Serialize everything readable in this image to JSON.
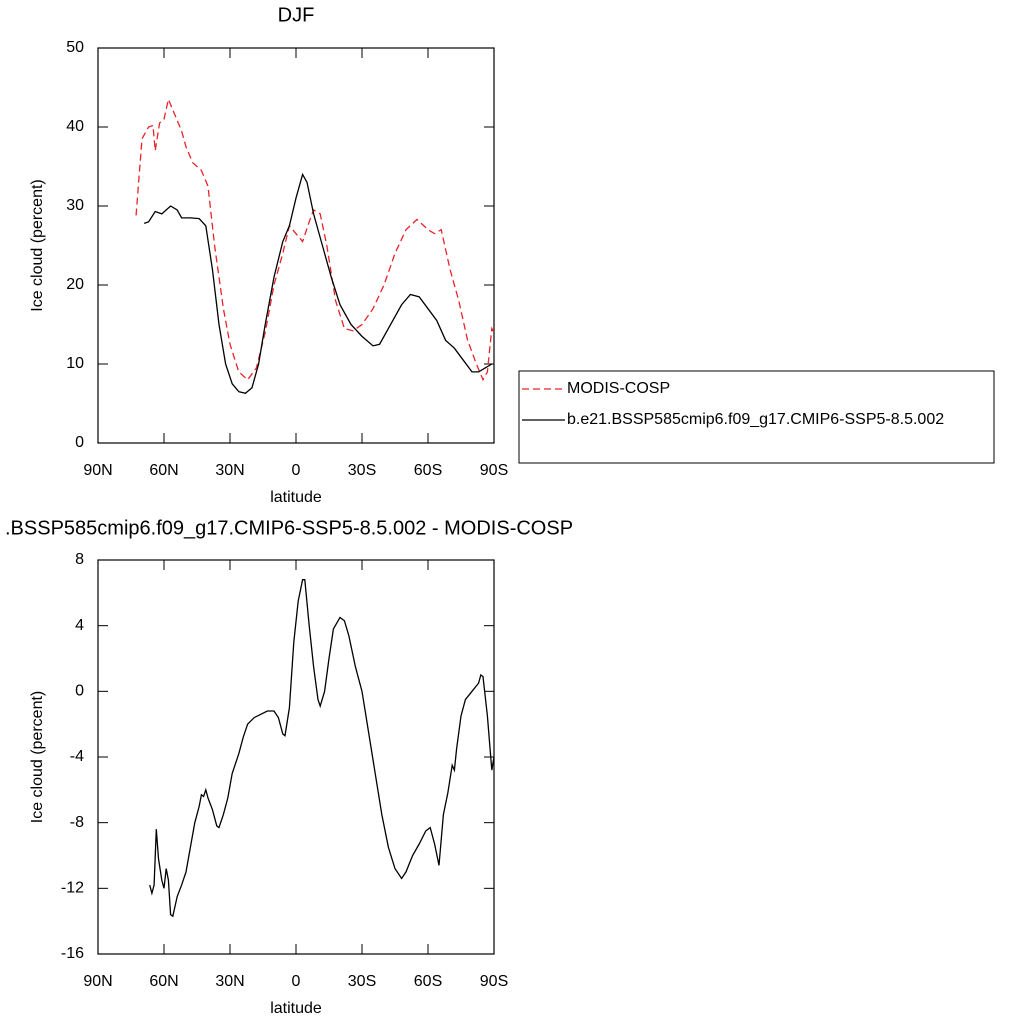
{
  "chart_data": [
    {
      "type": "line",
      "title": "DJF",
      "xlabel": "latitude",
      "ylabel": "Ice cloud (percent)",
      "xlim": [
        90,
        -90
      ],
      "xticks": [
        {
          "value": 90,
          "label": "90N"
        },
        {
          "value": 60,
          "label": "60N"
        },
        {
          "value": 30,
          "label": "30N"
        },
        0,
        {
          "value": -30,
          "label": "30S"
        },
        {
          "value": -60,
          "label": "60S"
        },
        {
          "value": -90,
          "label": "90S"
        }
      ],
      "ylim": [
        0,
        50
      ],
      "yticks": [
        0,
        10,
        20,
        30,
        40,
        50
      ],
      "legend": "right",
      "series": [
        {
          "name": "MODIS-COSP",
          "color": "#e8242a",
          "dashed": true,
          "x": [
            72.7,
            70,
            67,
            65,
            64,
            62,
            60,
            58,
            55,
            52,
            50,
            47,
            43,
            40,
            37,
            33,
            30,
            26,
            22,
            18,
            14,
            10,
            6,
            3,
            0,
            -3,
            -6,
            -8,
            -11,
            -14,
            -18,
            -22,
            -26,
            -30,
            -35,
            -40,
            -45,
            -50,
            -55,
            -60,
            -63,
            -66,
            -70,
            -74,
            -78,
            -82,
            -85,
            -87,
            -89,
            -90
          ],
          "values": [
            28.8,
            38.5,
            40,
            40.2,
            37,
            40.5,
            41,
            43.5,
            41.5,
            39.5,
            37.5,
            35.5,
            34.5,
            32.5,
            25,
            17,
            12.5,
            9,
            8,
            9.5,
            14,
            20,
            24,
            27.5,
            26.5,
            25.5,
            28,
            29.5,
            29,
            25,
            18,
            14.5,
            14.2,
            15,
            17,
            20,
            24,
            27,
            28.3,
            27,
            26.5,
            27,
            22,
            18,
            13,
            10,
            8,
            9,
            14.5,
            14
          ]
        },
        {
          "name": "b.e21.BSSP585cmip6.f09_g17.CMIP6-SSP5-8.5.002",
          "color": "#000000",
          "dashed": false,
          "x": [
            69,
            67,
            64,
            61,
            57,
            54,
            52,
            48,
            44,
            41,
            38,
            35,
            32,
            29,
            26,
            23,
            20,
            17,
            14,
            10,
            6,
            3,
            0,
            -3,
            -5,
            -8,
            -12,
            -16,
            -20,
            -25,
            -30,
            -35,
            -38,
            -42,
            -48,
            -52,
            -56,
            -60,
            -64,
            -68,
            -72,
            -76,
            -80,
            -83,
            -86,
            -89
          ],
          "values": [
            27.8,
            28,
            29.3,
            29,
            30,
            29.5,
            28.5,
            28.5,
            28.4,
            27.5,
            22,
            15,
            10,
            7.5,
            6.5,
            6.3,
            7,
            10,
            15,
            21,
            25.5,
            27.5,
            31,
            34,
            33,
            29,
            25,
            21,
            17.5,
            15,
            13.5,
            12.3,
            12.5,
            14.5,
            17.5,
            18.8,
            18.5,
            17,
            15.5,
            13,
            12,
            10.5,
            9,
            9,
            9.5,
            10
          ]
        }
      ]
    },
    {
      "type": "line",
      "title": ".BSSP585cmip6.f09_g17.CMIP6-SSP5-8.5.002 - MODIS-COSP",
      "xlabel": "latitude",
      "ylabel": "Ice cloud (percent)",
      "xlim": [
        90,
        -90
      ],
      "xticks": [
        {
          "value": 90,
          "label": "90N"
        },
        {
          "value": 60,
          "label": "60N"
        },
        {
          "value": 30,
          "label": "30N"
        },
        0,
        {
          "value": -30,
          "label": "30S"
        },
        {
          "value": -60,
          "label": "60S"
        },
        {
          "value": -90,
          "label": "90S"
        }
      ],
      "ylim": [
        -16,
        8
      ],
      "yticks": [
        -16,
        -12,
        -8,
        -4,
        0,
        4,
        8
      ],
      "series": [
        {
          "color": "#000000",
          "dashed": false,
          "x": [
            66.5,
            65.5,
            64.5,
            63.5,
            62.5,
            61,
            60,
            59,
            58,
            57,
            56,
            54,
            52,
            50,
            48,
            46,
            44,
            43,
            42,
            41,
            40,
            38,
            36,
            35,
            33,
            31,
            29,
            26,
            24,
            22,
            19,
            16,
            13,
            10,
            8,
            6,
            5,
            3,
            1,
            -1,
            -3,
            -4,
            -6,
            -8,
            -10,
            -11,
            -13,
            -15,
            -17,
            -20,
            -22,
            -24,
            -27,
            -30,
            -33,
            -36,
            -39,
            -42,
            -45,
            -48,
            -50,
            -53,
            -56,
            -59,
            -61,
            -63,
            -65,
            -67,
            -69,
            -71,
            -72,
            -73,
            -75,
            -77,
            -80,
            -83,
            -84,
            -85,
            -87,
            -89,
            -90
          ],
          "values": [
            -11.8,
            -12.3,
            -11.8,
            -8.4,
            -10.2,
            -11.5,
            -12,
            -10.8,
            -11.5,
            -13.6,
            -13.7,
            -12.5,
            -11.8,
            -11,
            -9.5,
            -8,
            -7,
            -6.3,
            -6.4,
            -6,
            -6.5,
            -7.2,
            -8.2,
            -8.3,
            -7.5,
            -6.5,
            -5,
            -3.8,
            -2.8,
            -2,
            -1.6,
            -1.4,
            -1.2,
            -1.2,
            -1.6,
            -2.6,
            -2.7,
            -1,
            3,
            5.5,
            6.8,
            6.8,
            4,
            1.5,
            -0.5,
            -0.9,
            0,
            2,
            3.8,
            4.5,
            4.3,
            3.4,
            1.5,
            0,
            -2.5,
            -5,
            -7.5,
            -9.5,
            -10.8,
            -11.4,
            -11,
            -10,
            -9.3,
            -8.5,
            -8.3,
            -9.3,
            -10.6,
            -7.5,
            -6.2,
            -4.5,
            -4.8,
            -3.5,
            -1.5,
            -0.5,
            0,
            0.5,
            1,
            0.9,
            -1.5,
            -4.8,
            -4
          ]
        }
      ]
    }
  ]
}
